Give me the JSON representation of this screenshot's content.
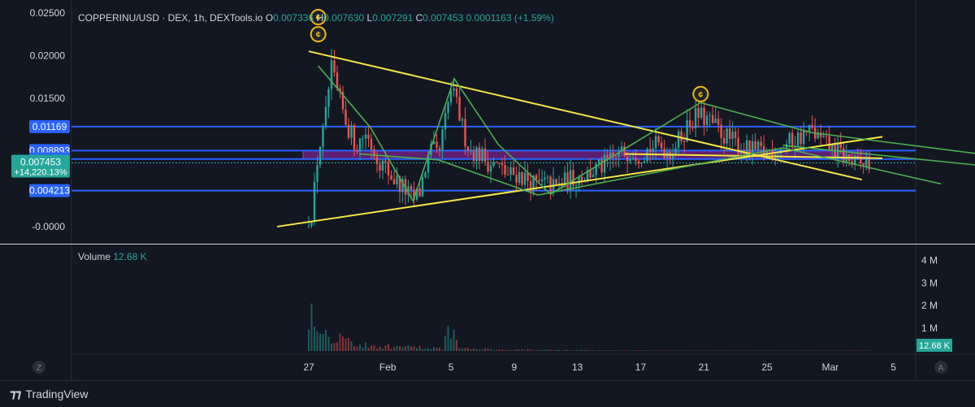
{
  "header": {
    "symbol": "COPPERINU/USD · DEX, 1h, DEXTools.io",
    "o_label": "O",
    "o_value": "0.007336",
    "h_label": "H",
    "h_value": "0.007630",
    "l_label": "L",
    "l_value": "0.007291",
    "c_label": "C",
    "c_value": "0.007453",
    "change": "0.0001163 (+1.59%)"
  },
  "volume_legend": {
    "label": "Volume",
    "value": "12.68 K"
  },
  "footer": {
    "brand": "TradingView",
    "z_label": "Z",
    "a_label": "A"
  },
  "colors": {
    "background": "#131722",
    "up": "#26a69a",
    "down": "#ef5350",
    "trendline": "#f5e642",
    "pattern": "#4caf50",
    "hline": "#2962ff",
    "zone": "#9c27b0"
  },
  "chart_data": {
    "type": "candlestick",
    "title": "COPPERINU/USD · DEX, 1h, DEXTools.io",
    "price_axis": {
      "ticks": [
        "0.02500",
        "0.02000",
        "0.01500",
        "-0.0000"
      ],
      "ylim": [
        -0.002,
        0.0265
      ]
    },
    "price_tags": [
      {
        "label": "0.01169",
        "value": 0.01169,
        "kind": "line"
      },
      {
        "label": "0.008893",
        "value": 0.008893,
        "kind": "line"
      },
      {
        "label": "0.007898",
        "value": 0.007898,
        "kind": "line"
      },
      {
        "label": "0.007453",
        "value": 0.007453,
        "kind": "last",
        "sub": "+14,220.13%"
      },
      {
        "label": "0.004213",
        "value": 0.004213,
        "kind": "line"
      }
    ],
    "time_axis": {
      "ticks": [
        "27",
        "Feb",
        "5",
        "9",
        "13",
        "17",
        "21",
        "25",
        "Mar",
        "5"
      ]
    },
    "horizontal_lines": [
      0.01169,
      0.008893,
      0.007898,
      0.004213
    ],
    "zone": {
      "top": 0.008893,
      "bottom": 0.007898
    },
    "volume_axis": {
      "ticks": [
        "4 M",
        "3 M",
        "2 M",
        "1 M"
      ],
      "last_label": "12.68 K"
    },
    "price_path": [
      [
        0.0,
        0.0
      ],
      [
        0.3,
        0.003
      ],
      [
        0.6,
        0.009
      ],
      [
        1.0,
        0.0115
      ],
      [
        1.4,
        0.0185
      ],
      [
        1.9,
        0.015
      ],
      [
        2.4,
        0.012
      ],
      [
        3.0,
        0.0095
      ],
      [
        3.6,
        0.011
      ],
      [
        4.2,
        0.0085
      ],
      [
        4.8,
        0.007
      ],
      [
        5.4,
        0.0055
      ],
      [
        6.0,
        0.0045
      ],
      [
        6.6,
        0.003
      ],
      [
        7.0,
        0.004
      ],
      [
        7.4,
        0.007
      ],
      [
        7.8,
        0.009
      ],
      [
        8.2,
        0.008
      ],
      [
        8.6,
        0.012
      ],
      [
        9.0,
        0.016
      ],
      [
        9.4,
        0.014
      ],
      [
        9.8,
        0.011
      ],
      [
        10.2,
        0.009
      ],
      [
        10.8,
        0.0085
      ],
      [
        11.4,
        0.0075
      ],
      [
        12.0,
        0.007
      ],
      [
        12.6,
        0.006
      ],
      [
        13.2,
        0.0062
      ],
      [
        13.8,
        0.0055
      ],
      [
        14.4,
        0.0048
      ],
      [
        15.0,
        0.005
      ],
      [
        15.6,
        0.0045
      ],
      [
        16.2,
        0.0052
      ],
      [
        16.8,
        0.0058
      ],
      [
        17.4,
        0.006
      ],
      [
        18.0,
        0.0065
      ],
      [
        18.6,
        0.007
      ],
      [
        19.2,
        0.0078
      ],
      [
        19.8,
        0.0085
      ],
      [
        20.4,
        0.009
      ],
      [
        21.0,
        0.0085
      ],
      [
        21.6,
        0.0092
      ],
      [
        22.2,
        0.0095
      ],
      [
        22.8,
        0.0088
      ],
      [
        23.4,
        0.01
      ],
      [
        24.0,
        0.012
      ],
      [
        24.6,
        0.013
      ],
      [
        25.2,
        0.0125
      ],
      [
        25.8,
        0.0115
      ],
      [
        26.4,
        0.0105
      ],
      [
        27.0,
        0.0098
      ],
      [
        27.6,
        0.009
      ],
      [
        28.2,
        0.0088
      ],
      [
        28.8,
        0.0086
      ],
      [
        29.4,
        0.009
      ],
      [
        30.0,
        0.0094
      ],
      [
        30.6,
        0.01
      ],
      [
        31.2,
        0.0106
      ],
      [
        31.8,
        0.0112
      ],
      [
        32.4,
        0.01
      ],
      [
        33.0,
        0.0092
      ],
      [
        33.6,
        0.0085
      ],
      [
        34.0,
        0.008
      ],
      [
        34.4,
        0.0074
      ],
      [
        34.8,
        0.0071
      ],
      [
        35.2,
        0.0073
      ],
      [
        35.6,
        0.0075
      ]
    ],
    "trendlines_yellow": [
      [
        [
          0.0,
          0.0205
        ],
        [
          35.0,
          0.0055
        ]
      ],
      [
        [
          -2.0,
          0.0
        ],
        [
          36.3,
          0.0105
        ]
      ],
      [
        [
          20.0,
          0.0085
        ],
        [
          36.3,
          0.008
        ]
      ]
    ],
    "trendlines_green": [
      [
        [
          0.6,
          0.0188
        ],
        [
          3.9,
          0.0116
        ],
        [
          6.6,
          0.003
        ],
        [
          9.2,
          0.0173
        ],
        [
          12.0,
          0.0096
        ],
        [
          15.3,
          0.0038
        ],
        [
          24.8,
          0.0145
        ],
        [
          31.8,
          0.011
        ],
        [
          43.3,
          0.0083
        ]
      ],
      [
        [
          3.2,
          0.0085
        ],
        [
          8.2,
          0.0078
        ],
        [
          14.5,
          0.0037
        ],
        [
          30.0,
          0.0092
        ],
        [
          40.0,
          0.005
        ]
      ],
      [
        [
          30.0,
          0.0095
        ],
        [
          43.3,
          0.007
        ]
      ]
    ],
    "pattern_markers": [
      [
        0.6,
        0.0245
      ],
      [
        0.6,
        0.0225
      ],
      [
        24.8,
        0.0155
      ]
    ]
  }
}
